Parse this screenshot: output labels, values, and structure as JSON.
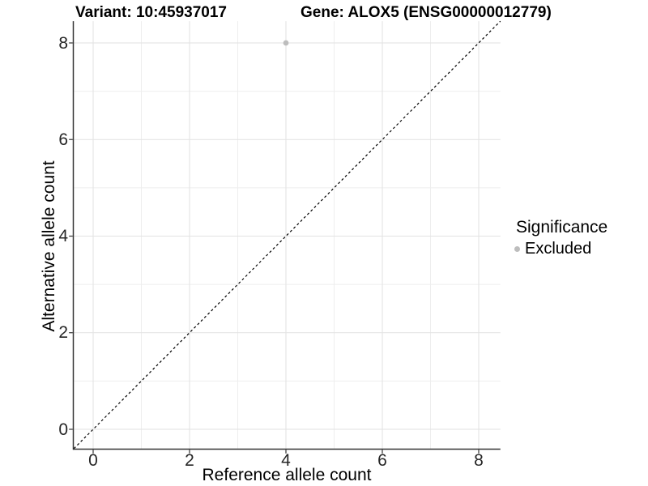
{
  "titles": {
    "variant": "Variant: 10:45937017",
    "gene": "Gene: ALOX5 (ENSG00000012779)"
  },
  "axes": {
    "x_label": "Reference allele count",
    "y_label": "Alternative allele count",
    "x_ticks": [
      0,
      2,
      4,
      6,
      8
    ],
    "y_ticks": [
      0,
      2,
      4,
      6,
      8
    ]
  },
  "legend": {
    "title": "Significance",
    "items": [
      {
        "label": "Excluded",
        "color": "#bdbdbd",
        "marker": "point-icon"
      }
    ]
  },
  "colors": {
    "background": "#ffffff",
    "grid_major": "#e2e2e2",
    "grid_minor": "#eeeeee",
    "axis_line": "#333333",
    "tick_mark": "#333333",
    "tick_label": "#262626",
    "reference_line": "#000000",
    "point_excluded": "#bdbdbd"
  },
  "chart_data": {
    "type": "scatter",
    "title": "Variant: 10:45937017    Gene: ALOX5 (ENSG00000012779)",
    "xlabel": "Reference allele count",
    "ylabel": "Alternative allele count",
    "xlim": [
      -0.4,
      8.45
    ],
    "ylim": [
      -0.4,
      8.45
    ],
    "x_ticks": [
      0,
      2,
      4,
      6,
      8
    ],
    "y_ticks": [
      0,
      2,
      4,
      6,
      8
    ],
    "x_minor_ticks": [
      1,
      3,
      5,
      7
    ],
    "y_minor_ticks": [
      1,
      3,
      5,
      7
    ],
    "grid": "major-and-minor",
    "legend_position": "right",
    "series": [
      {
        "name": "Excluded",
        "color": "#bdbdbd",
        "points": [
          {
            "x": 4,
            "y": 8
          }
        ]
      }
    ],
    "reference_line": {
      "type": "identity",
      "style": "dashed",
      "color": "#000000",
      "from": [
        -0.4,
        -0.4
      ],
      "to": [
        8.45,
        8.45
      ]
    }
  }
}
